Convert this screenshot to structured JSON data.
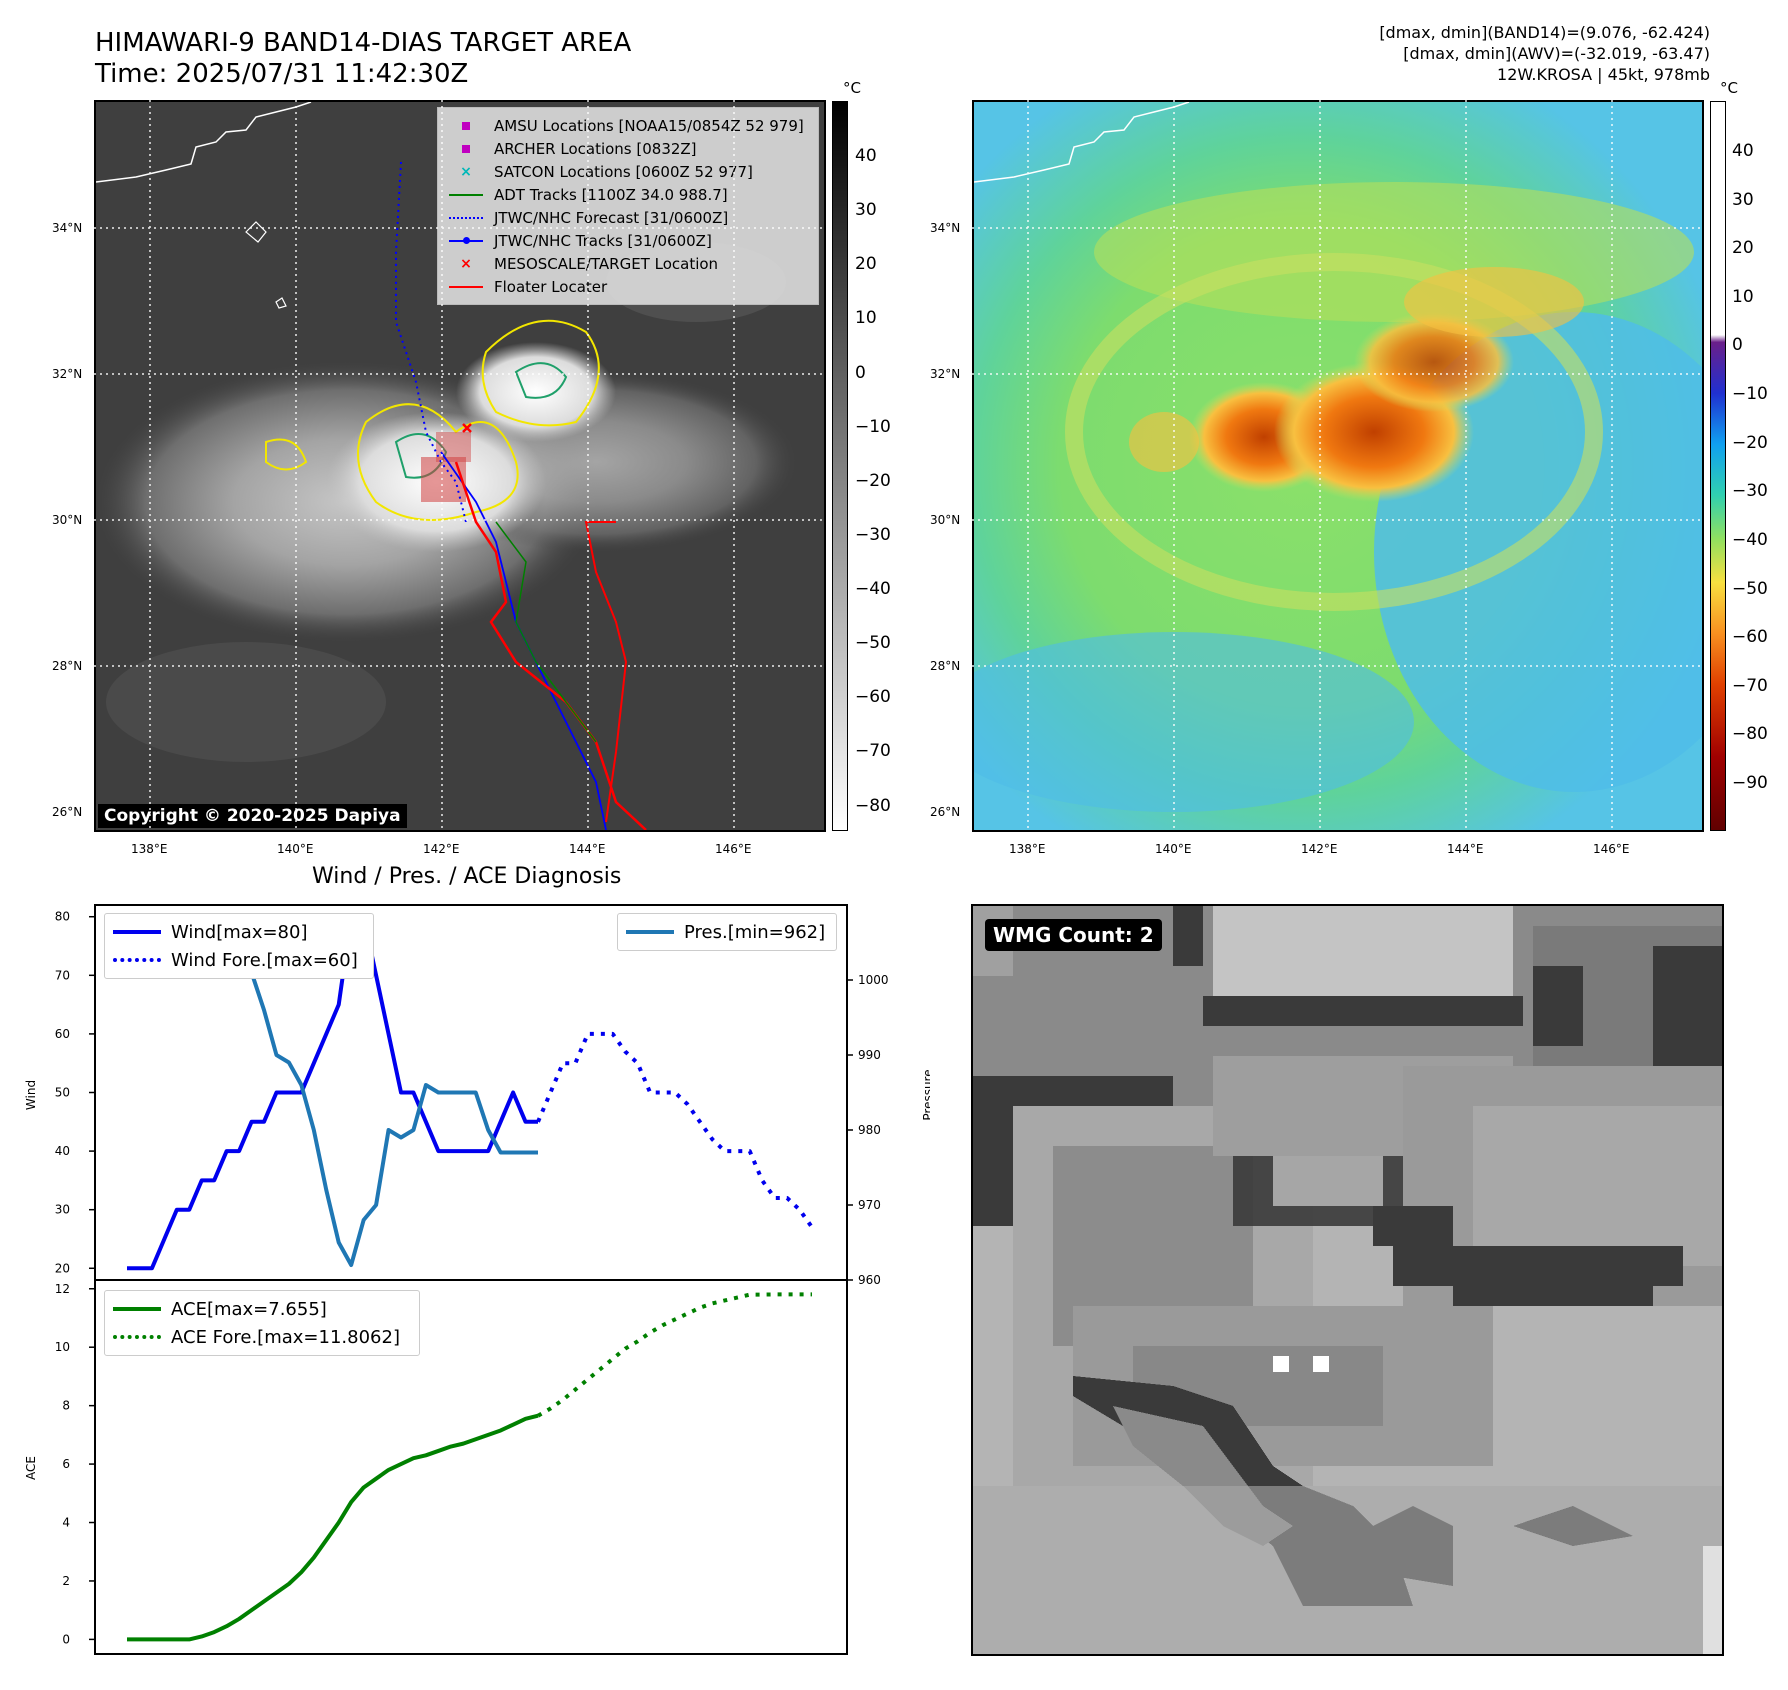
{
  "header": {
    "title_line1": "HIMAWARI-9 BAND14-DIAS TARGET AREA",
    "title_line2": "Time: 2025/07/31 11:42:30Z",
    "info_line1": "[dmax, dmin](BAND14)=(9.076, -62.424)",
    "info_line2": "[dmax, dmin](AWV)=(-32.019, -63.47)",
    "info_line3": "12W.KROSA | 45kt, 978mb"
  },
  "map": {
    "lat_labels": [
      "34°N",
      "32°N",
      "30°N",
      "28°N",
      "26°N"
    ],
    "lon_labels": [
      "138°E",
      "140°E",
      "142°E",
      "144°E",
      "146°E"
    ],
    "copyright": "Copyright © 2020-2025 Dapiya",
    "colorbar_unit": "°C",
    "band14_ticks": [
      "40",
      "30",
      "20",
      "10",
      "0",
      "−10",
      "−20",
      "−30",
      "−40",
      "−50",
      "−60",
      "−70",
      "−80"
    ],
    "awv_ticks": [
      "40",
      "30",
      "20",
      "10",
      "0",
      "−10",
      "−20",
      "−30",
      "−40",
      "−50",
      "−60",
      "−70",
      "−80",
      "−90"
    ],
    "legend": [
      {
        "label": "AMSU Locations [NOAA15/0854Z 52 979]",
        "key": "square",
        "color": "#c000c0"
      },
      {
        "label": "ARCHER Locations [0832Z]",
        "key": "square",
        "color": "#c000c0"
      },
      {
        "label": "SATCON Locations [0600Z 52 977]",
        "key": "x",
        "color": "#00b8b8"
      },
      {
        "label": "ADT Tracks [1100Z 34.0 988.7]",
        "key": "line",
        "color": "#008000"
      },
      {
        "label": "JTWC/NHC Forecast [31/0600Z]",
        "key": "dotted",
        "color": "#0000ff"
      },
      {
        "label": "JTWC/NHC Tracks [31/0600Z]",
        "key": "line-dot",
        "color": "#0000ff"
      },
      {
        "label": "MESOSCALE/TARGET Location",
        "key": "x",
        "color": "#ff0000"
      },
      {
        "label": "Floater Locater",
        "key": "line",
        "color": "#ff0000"
      }
    ]
  },
  "wmg": {
    "label": "WMG Count: 2"
  },
  "diagnosis": {
    "title": "Wind / Pres. / ACE Diagnosis",
    "wind_ylabel": "Wind",
    "pres_ylabel": "Pressure",
    "ace_ylabel": "ACE",
    "legend_wind": "Wind[max=80]",
    "legend_wind_fore": "Wind Fore.[max=60]",
    "legend_pres": "Pres.[min=962]",
    "legend_ace": "ACE[max=7.655]",
    "legend_ace_fore": "ACE Fore.[max=11.8062]"
  },
  "colors": {
    "wind": "#0000ee",
    "pressure": "#1f77b4",
    "ace": "#008000"
  },
  "chart_data": [
    {
      "type": "line",
      "title": "Wind / Pres. / ACE Diagnosis",
      "ylabel": "Wind",
      "ylim": [
        18,
        82
      ],
      "y2label": "Pressure",
      "y2lim": [
        960,
        1010
      ],
      "x": [
        0,
        1,
        2,
        3,
        4,
        5,
        6,
        7,
        8,
        9,
        10,
        11,
        12,
        13,
        14,
        15,
        16,
        17,
        18,
        19,
        20,
        21,
        22,
        23,
        24,
        25,
        26,
        27,
        28,
        29,
        30,
        31,
        32,
        33,
        34,
        35,
        36,
        37,
        38,
        39,
        40,
        41,
        42,
        43,
        44,
        45,
        46,
        47,
        48,
        49,
        50,
        51,
        52,
        53,
        54,
        55
      ],
      "series": [
        {
          "name": "Wind[max=80]",
          "style": "solid",
          "axis": "left",
          "color": "#0000ee",
          "x": [
            0,
            1,
            2,
            3,
            4,
            5,
            6,
            7,
            8,
            9,
            10,
            11,
            12,
            13,
            14,
            15,
            16,
            17,
            18,
            19,
            20,
            21,
            22,
            23,
            24,
            25,
            26,
            27,
            28,
            29,
            30,
            31,
            32,
            33
          ],
          "values": [
            20,
            20,
            20,
            25,
            30,
            30,
            35,
            35,
            40,
            40,
            45,
            45,
            50,
            50,
            50,
            55,
            60,
            65,
            80,
            80,
            70,
            60,
            50,
            50,
            45,
            40,
            40,
            40,
            40,
            40,
            45,
            50,
            45,
            45
          ]
        },
        {
          "name": "Wind Fore.[max=60]",
          "style": "dotted",
          "axis": "left",
          "color": "#0000ee",
          "x": [
            33,
            34,
            35,
            36,
            37,
            38,
            39,
            40,
            41,
            42,
            43,
            44,
            45,
            46,
            47,
            48,
            49,
            50,
            51,
            52,
            53,
            54,
            55
          ],
          "values": [
            45,
            50,
            55,
            55,
            60,
            60,
            60,
            57,
            55,
            50,
            50,
            50,
            48,
            45,
            42,
            40,
            40,
            40,
            35,
            32,
            32,
            30,
            27
          ]
        },
        {
          "name": "Pres.[min=962]",
          "style": "solid",
          "axis": "right",
          "color": "#1f77b4",
          "x": [
            0,
            1,
            2,
            3,
            4,
            5,
            6,
            7,
            8,
            9,
            10,
            11,
            12,
            13,
            14,
            15,
            16,
            17,
            18,
            19,
            20,
            21,
            22,
            23,
            24,
            25,
            26,
            27,
            28,
            29,
            30,
            31,
            32,
            33
          ],
          "values": [
            1008,
            1008,
            1008,
            1006,
            1006,
            1005,
            1003,
            1003,
            1001,
            1001,
            1001,
            996,
            990,
            989,
            986,
            980,
            972,
            965,
            962,
            968,
            970,
            980,
            979,
            980,
            986,
            985,
            985,
            985,
            985,
            980,
            977,
            977,
            977,
            977
          ]
        }
      ]
    },
    {
      "type": "line",
      "ylabel": "ACE",
      "ylim": [
        -0.5,
        12.3
      ],
      "series": [
        {
          "name": "ACE[max=7.655]",
          "style": "solid",
          "color": "#008000",
          "x": [
            0,
            1,
            2,
            3,
            4,
            5,
            6,
            7,
            8,
            9,
            10,
            11,
            12,
            13,
            14,
            15,
            16,
            17,
            18,
            19,
            20,
            21,
            22,
            23,
            24,
            25,
            26,
            27,
            28,
            29,
            30,
            31,
            32,
            33
          ],
          "values": [
            0,
            0,
            0,
            0,
            0,
            0,
            0.1,
            0.25,
            0.45,
            0.7,
            1.0,
            1.3,
            1.6,
            1.9,
            2.3,
            2.8,
            3.4,
            4.0,
            4.7,
            5.2,
            5.5,
            5.8,
            6.0,
            6.2,
            6.3,
            6.45,
            6.6,
            6.7,
            6.85,
            7.0,
            7.15,
            7.35,
            7.55,
            7.655
          ]
        },
        {
          "name": "ACE Fore.[max=11.8062]",
          "style": "dotted",
          "color": "#008000",
          "x": [
            33,
            34,
            35,
            36,
            37,
            38,
            39,
            40,
            41,
            42,
            43,
            44,
            45,
            46,
            47,
            48,
            49,
            50,
            51,
            52,
            53,
            54,
            55
          ],
          "values": [
            7.655,
            7.9,
            8.2,
            8.55,
            8.9,
            9.25,
            9.6,
            9.95,
            10.2,
            10.5,
            10.75,
            10.95,
            11.15,
            11.35,
            11.5,
            11.6,
            11.7,
            11.8,
            11.8,
            11.8062,
            11.8062,
            11.8062,
            11.8062
          ]
        }
      ]
    }
  ]
}
